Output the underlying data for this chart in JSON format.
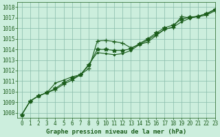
{
  "background_color": "#cceedd",
  "grid_color": "#88bbaa",
  "line_color": "#1a5c1a",
  "marker_color": "#1a5c1a",
  "xlabel": "Graphe pression niveau de la mer (hPa)",
  "xlim": [
    -0.5,
    23
  ],
  "ylim": [
    1007.5,
    1018.5
  ],
  "yticks": [
    1008,
    1009,
    1010,
    1011,
    1012,
    1013,
    1014,
    1015,
    1016,
    1017,
    1018
  ],
  "xticks": [
    0,
    1,
    2,
    3,
    4,
    5,
    6,
    7,
    8,
    9,
    10,
    11,
    12,
    13,
    14,
    15,
    16,
    17,
    18,
    19,
    20,
    21,
    22,
    23
  ],
  "series1_x": [
    0,
    1,
    2,
    3,
    4,
    5,
    6,
    7,
    8,
    9,
    10,
    11,
    12,
    13,
    14,
    15,
    16,
    17,
    18,
    19,
    20,
    21,
    22,
    23
  ],
  "series1_y": [
    1007.8,
    1009.1,
    1009.6,
    1009.9,
    1010.2,
    1010.7,
    1011.1,
    1011.6,
    1012.2,
    1014.8,
    1014.85,
    1014.75,
    1014.6,
    1014.15,
    1014.45,
    1014.7,
    1015.3,
    1015.9,
    1016.1,
    1017.1,
    1017.0,
    1017.1,
    1017.25,
    1017.65
  ],
  "series2_x": [
    0,
    1,
    2,
    3,
    4,
    5,
    6,
    7,
    8,
    9,
    10,
    11,
    12,
    13,
    14,
    15,
    16,
    17,
    18,
    19,
    20,
    21,
    22,
    23
  ],
  "series2_y": [
    1007.8,
    1009.1,
    1009.6,
    1009.9,
    1010.8,
    1011.1,
    1011.4,
    1011.6,
    1012.6,
    1013.7,
    1013.6,
    1013.5,
    1013.6,
    1013.9,
    1014.45,
    1014.9,
    1015.4,
    1015.9,
    1016.1,
    1016.6,
    1016.95,
    1017.15,
    1017.35,
    1017.75
  ],
  "series3_x": [
    0,
    1,
    2,
    3,
    4,
    5,
    6,
    7,
    8,
    9,
    10,
    11,
    12,
    13,
    14,
    15,
    16,
    17,
    18,
    19,
    20,
    21,
    22,
    23
  ],
  "series3_y": [
    1007.8,
    1009.1,
    1009.6,
    1009.9,
    1010.3,
    1010.85,
    1011.25,
    1011.6,
    1012.5,
    1014.0,
    1014.0,
    1013.9,
    1013.9,
    1014.05,
    1014.55,
    1015.0,
    1015.55,
    1016.05,
    1016.3,
    1016.85,
    1017.05,
    1017.15,
    1017.4,
    1017.8
  ],
  "tick_fontsize": 5.5,
  "label_fontsize": 6.5,
  "linewidth": 0.8,
  "markersize": 2.5
}
